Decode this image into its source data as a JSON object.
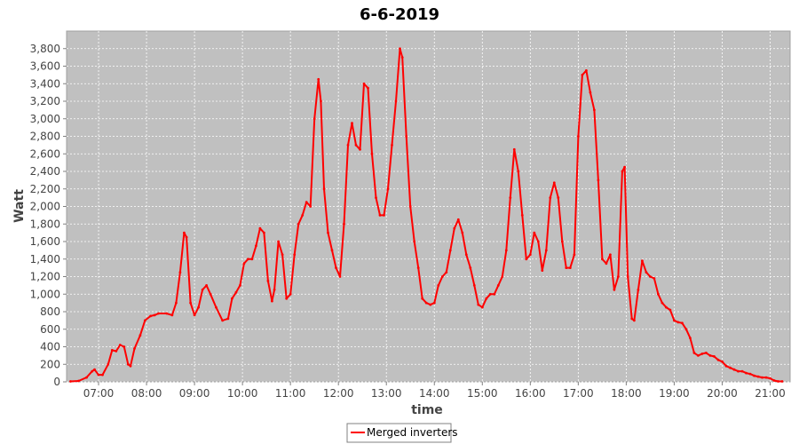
{
  "chart_data": {
    "type": "line",
    "title": "6-6-2019",
    "xlabel": "time",
    "ylabel": "Watt",
    "x_ticks": [
      "07:00",
      "08:00",
      "09:00",
      "10:00",
      "11:00",
      "12:00",
      "13:00",
      "14:00",
      "15:00",
      "16:00",
      "17:00",
      "18:00",
      "19:00",
      "20:00",
      "21:00"
    ],
    "y_ticks": [
      "0",
      "200",
      "400",
      "600",
      "800",
      "1,000",
      "1,200",
      "1,400",
      "1,600",
      "1,800",
      "2,000",
      "2,200",
      "2,400",
      "2,600",
      "2,800",
      "3,000",
      "3,200",
      "3,400",
      "3,600",
      "3,800"
    ],
    "x_range": [
      "06:20",
      "21:25"
    ],
    "ylim": [
      0,
      4000
    ],
    "grid": true,
    "legend_position": "bottom-center",
    "series": [
      {
        "name": "Merged inverters",
        "color": "#ff0000",
        "points": [
          [
            "06:25",
            5
          ],
          [
            "06:35",
            10
          ],
          [
            "06:45",
            50
          ],
          [
            "06:52",
            120
          ],
          [
            "06:55",
            140
          ],
          [
            "07:00",
            80
          ],
          [
            "07:05",
            80
          ],
          [
            "07:12",
            200
          ],
          [
            "07:17",
            360
          ],
          [
            "07:22",
            350
          ],
          [
            "07:27",
            420
          ],
          [
            "07:32",
            400
          ],
          [
            "07:37",
            200
          ],
          [
            "07:40",
            180
          ],
          [
            "07:45",
            380
          ],
          [
            "07:52",
            530
          ],
          [
            "07:58",
            700
          ],
          [
            "08:05",
            750
          ],
          [
            "08:10",
            760
          ],
          [
            "08:15",
            780
          ],
          [
            "08:25",
            780
          ],
          [
            "08:32",
            760
          ],
          [
            "08:37",
            900
          ],
          [
            "08:42",
            1250
          ],
          [
            "08:47",
            1700
          ],
          [
            "08:50",
            1650
          ],
          [
            "08:55",
            900
          ],
          [
            "09:00",
            760
          ],
          [
            "09:05",
            850
          ],
          [
            "09:10",
            1050
          ],
          [
            "09:15",
            1100
          ],
          [
            "09:20",
            1000
          ],
          [
            "09:27",
            850
          ],
          [
            "09:35",
            700
          ],
          [
            "09:42",
            720
          ],
          [
            "09:47",
            950
          ],
          [
            "09:52",
            1020
          ],
          [
            "09:57",
            1100
          ],
          [
            "10:02",
            1350
          ],
          [
            "10:07",
            1400
          ],
          [
            "10:12",
            1400
          ],
          [
            "10:17",
            1550
          ],
          [
            "10:22",
            1750
          ],
          [
            "10:27",
            1700
          ],
          [
            "10:32",
            1150
          ],
          [
            "10:37",
            920
          ],
          [
            "10:40",
            1050
          ],
          [
            "10:45",
            1600
          ],
          [
            "10:50",
            1450
          ],
          [
            "10:55",
            950
          ],
          [
            "11:00",
            1000
          ],
          [
            "11:05",
            1450
          ],
          [
            "11:10",
            1800
          ],
          [
            "11:15",
            1900
          ],
          [
            "11:20",
            2050
          ],
          [
            "11:25",
            2000
          ],
          [
            "11:30",
            3000
          ],
          [
            "11:35",
            3450
          ],
          [
            "11:38",
            3200
          ],
          [
            "11:42",
            2200
          ],
          [
            "11:47",
            1700
          ],
          [
            "11:52",
            1500
          ],
          [
            "11:57",
            1300
          ],
          [
            "12:02",
            1200
          ],
          [
            "12:07",
            1800
          ],
          [
            "12:12",
            2700
          ],
          [
            "12:17",
            2950
          ],
          [
            "12:22",
            2700
          ],
          [
            "12:27",
            2650
          ],
          [
            "12:32",
            3400
          ],
          [
            "12:37",
            3350
          ],
          [
            "12:42",
            2600
          ],
          [
            "12:47",
            2100
          ],
          [
            "12:52",
            1900
          ],
          [
            "12:57",
            1900
          ],
          [
            "13:02",
            2200
          ],
          [
            "13:07",
            2700
          ],
          [
            "13:12",
            3200
          ],
          [
            "13:17",
            3800
          ],
          [
            "13:20",
            3700
          ],
          [
            "13:25",
            2800
          ],
          [
            "13:30",
            2000
          ],
          [
            "13:35",
            1600
          ],
          [
            "13:40",
            1300
          ],
          [
            "13:45",
            950
          ],
          [
            "13:50",
            900
          ],
          [
            "13:55",
            880
          ],
          [
            "14:00",
            900
          ],
          [
            "14:05",
            1100
          ],
          [
            "14:10",
            1200
          ],
          [
            "14:15",
            1250
          ],
          [
            "14:20",
            1500
          ],
          [
            "14:25",
            1750
          ],
          [
            "14:30",
            1850
          ],
          [
            "14:35",
            1700
          ],
          [
            "14:40",
            1450
          ],
          [
            "14:45",
            1300
          ],
          [
            "14:50",
            1100
          ],
          [
            "14:55",
            880
          ],
          [
            "15:00",
            850
          ],
          [
            "15:05",
            950
          ],
          [
            "15:10",
            1000
          ],
          [
            "15:15",
            1000
          ],
          [
            "15:20",
            1100
          ],
          [
            "15:25",
            1200
          ],
          [
            "15:30",
            1500
          ],
          [
            "15:35",
            2100
          ],
          [
            "15:40",
            2650
          ],
          [
            "15:45",
            2400
          ],
          [
            "15:50",
            1900
          ],
          [
            "15:55",
            1400
          ],
          [
            "16:00",
            1450
          ],
          [
            "16:05",
            1700
          ],
          [
            "16:10",
            1600
          ],
          [
            "16:15",
            1270
          ],
          [
            "16:20",
            1500
          ],
          [
            "16:25",
            2100
          ],
          [
            "16:30",
            2270
          ],
          [
            "16:35",
            2100
          ],
          [
            "16:40",
            1600
          ],
          [
            "16:45",
            1300
          ],
          [
            "16:50",
            1300
          ],
          [
            "16:55",
            1450
          ],
          [
            "17:00",
            2800
          ],
          [
            "17:05",
            3500
          ],
          [
            "17:10",
            3550
          ],
          [
            "17:15",
            3300
          ],
          [
            "17:20",
            3100
          ],
          [
            "17:25",
            2300
          ],
          [
            "17:30",
            1400
          ],
          [
            "17:35",
            1350
          ],
          [
            "17:40",
            1450
          ],
          [
            "17:45",
            1050
          ],
          [
            "17:50",
            1200
          ],
          [
            "17:55",
            2400
          ],
          [
            "17:58",
            2450
          ],
          [
            "18:02",
            1200
          ],
          [
            "18:07",
            720
          ],
          [
            "18:10",
            700
          ],
          [
            "18:15",
            1050
          ],
          [
            "18:20",
            1380
          ],
          [
            "18:25",
            1250
          ],
          [
            "18:30",
            1200
          ],
          [
            "18:35",
            1180
          ],
          [
            "18:40",
            1000
          ],
          [
            "18:45",
            900
          ],
          [
            "18:50",
            850
          ],
          [
            "18:55",
            820
          ],
          [
            "19:00",
            700
          ],
          [
            "19:05",
            680
          ],
          [
            "19:10",
            670
          ],
          [
            "19:15",
            600
          ],
          [
            "19:20",
            500
          ],
          [
            "19:25",
            330
          ],
          [
            "19:30",
            300
          ],
          [
            "19:35",
            320
          ],
          [
            "19:40",
            330
          ],
          [
            "19:45",
            300
          ],
          [
            "19:50",
            290
          ],
          [
            "19:55",
            250
          ],
          [
            "20:00",
            230
          ],
          [
            "20:05",
            180
          ],
          [
            "20:10",
            160
          ],
          [
            "20:15",
            140
          ],
          [
            "20:20",
            120
          ],
          [
            "20:25",
            120
          ],
          [
            "20:30",
            100
          ],
          [
            "20:35",
            90
          ],
          [
            "20:40",
            70
          ],
          [
            "20:45",
            60
          ],
          [
            "20:50",
            50
          ],
          [
            "20:55",
            50
          ],
          [
            "21:00",
            40
          ],
          [
            "21:05",
            15
          ],
          [
            "21:10",
            5
          ],
          [
            "21:15",
            5
          ]
        ]
      }
    ]
  }
}
